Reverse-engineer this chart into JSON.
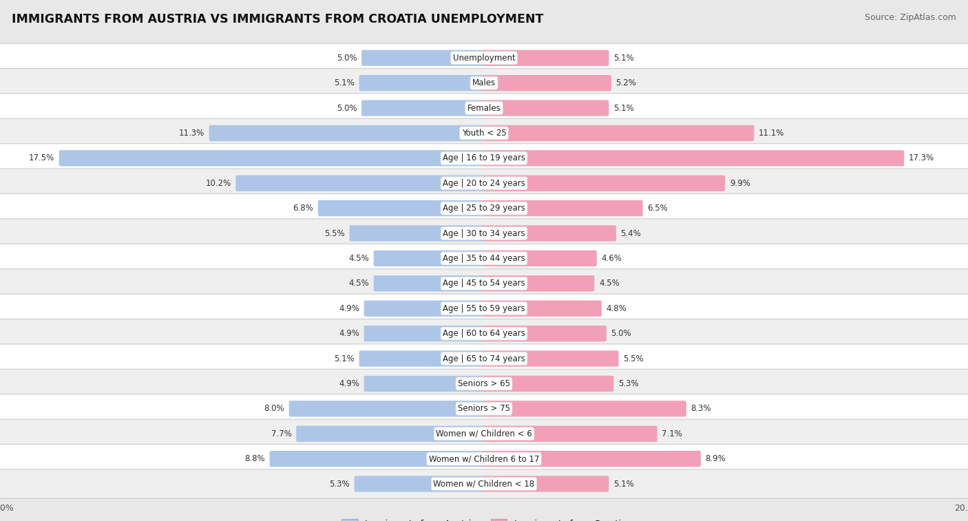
{
  "title": "IMMIGRANTS FROM AUSTRIA VS IMMIGRANTS FROM CROATIA UNEMPLOYMENT",
  "source": "Source: ZipAtlas.com",
  "categories": [
    "Unemployment",
    "Males",
    "Females",
    "Youth < 25",
    "Age | 16 to 19 years",
    "Age | 20 to 24 years",
    "Age | 25 to 29 years",
    "Age | 30 to 34 years",
    "Age | 35 to 44 years",
    "Age | 45 to 54 years",
    "Age | 55 to 59 years",
    "Age | 60 to 64 years",
    "Age | 65 to 74 years",
    "Seniors > 65",
    "Seniors > 75",
    "Women w/ Children < 6",
    "Women w/ Children 6 to 17",
    "Women w/ Children < 18"
  ],
  "austria_values": [
    5.0,
    5.1,
    5.0,
    11.3,
    17.5,
    10.2,
    6.8,
    5.5,
    4.5,
    4.5,
    4.9,
    4.9,
    5.1,
    4.9,
    8.0,
    7.7,
    8.8,
    5.3
  ],
  "croatia_values": [
    5.1,
    5.2,
    5.1,
    11.1,
    17.3,
    9.9,
    6.5,
    5.4,
    4.6,
    4.5,
    4.8,
    5.0,
    5.5,
    5.3,
    8.3,
    7.1,
    8.9,
    5.1
  ],
  "austria_color": "#adc6e8",
  "croatia_color": "#f2a0b8",
  "bar_height": 0.52,
  "max_value": 20.0,
  "bg_color": "#e8e8e8",
  "row_colors": [
    "#ffffff",
    "#efefef"
  ],
  "legend_austria": "Immigrants from Austria",
  "legend_croatia": "Immigrants from Croatia",
  "title_fontsize": 12.5,
  "source_fontsize": 9,
  "label_fontsize": 8.5,
  "value_fontsize": 8.5
}
